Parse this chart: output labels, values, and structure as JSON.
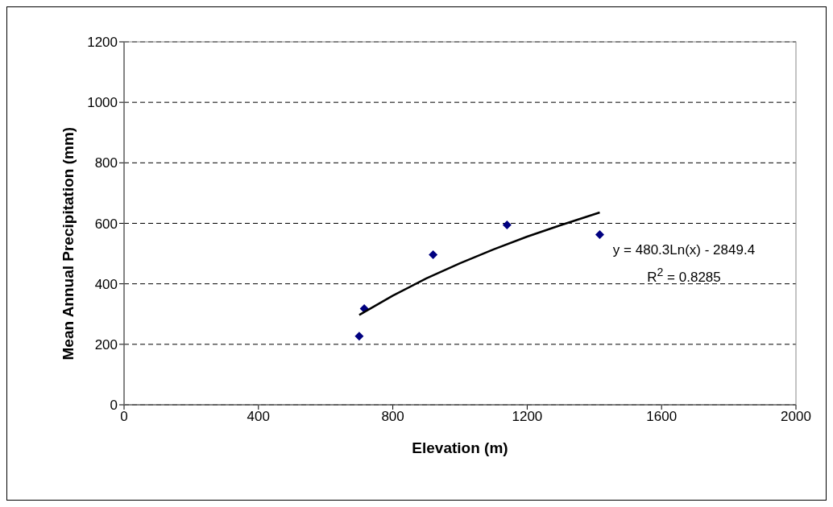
{
  "chart_data": {
    "type": "scatter",
    "xlabel": "Elevation (m)",
    "ylabel": "Mean Annual Precipitation (mm)",
    "xlim": [
      0,
      2000
    ],
    "xticks": [
      0,
      400,
      800,
      1200,
      1600,
      2000
    ],
    "ylim": [
      0,
      1200
    ],
    "yticks": [
      0,
      200,
      400,
      600,
      800,
      1000,
      1200
    ],
    "grid": "y",
    "series": [
      {
        "type": "scatter",
        "color": "#000080",
        "marker": "diamond",
        "x": [
          700,
          715,
          920,
          1140,
          1416
        ],
        "values": [
          227,
          318,
          496,
          595,
          563
        ]
      },
      {
        "type": "line",
        "color": "#000000",
        "marker": "none",
        "x": [
          700,
          800,
          900,
          1000,
          1100,
          1200,
          1300,
          1416
        ],
        "values": [
          297,
          361,
          418,
          468,
          514,
          556,
          594,
          636
        ]
      }
    ],
    "annotations": [
      "y = 480.3Ln(x) - 2849.4",
      "R$^{2}$ = 0.8285"
    ]
  }
}
